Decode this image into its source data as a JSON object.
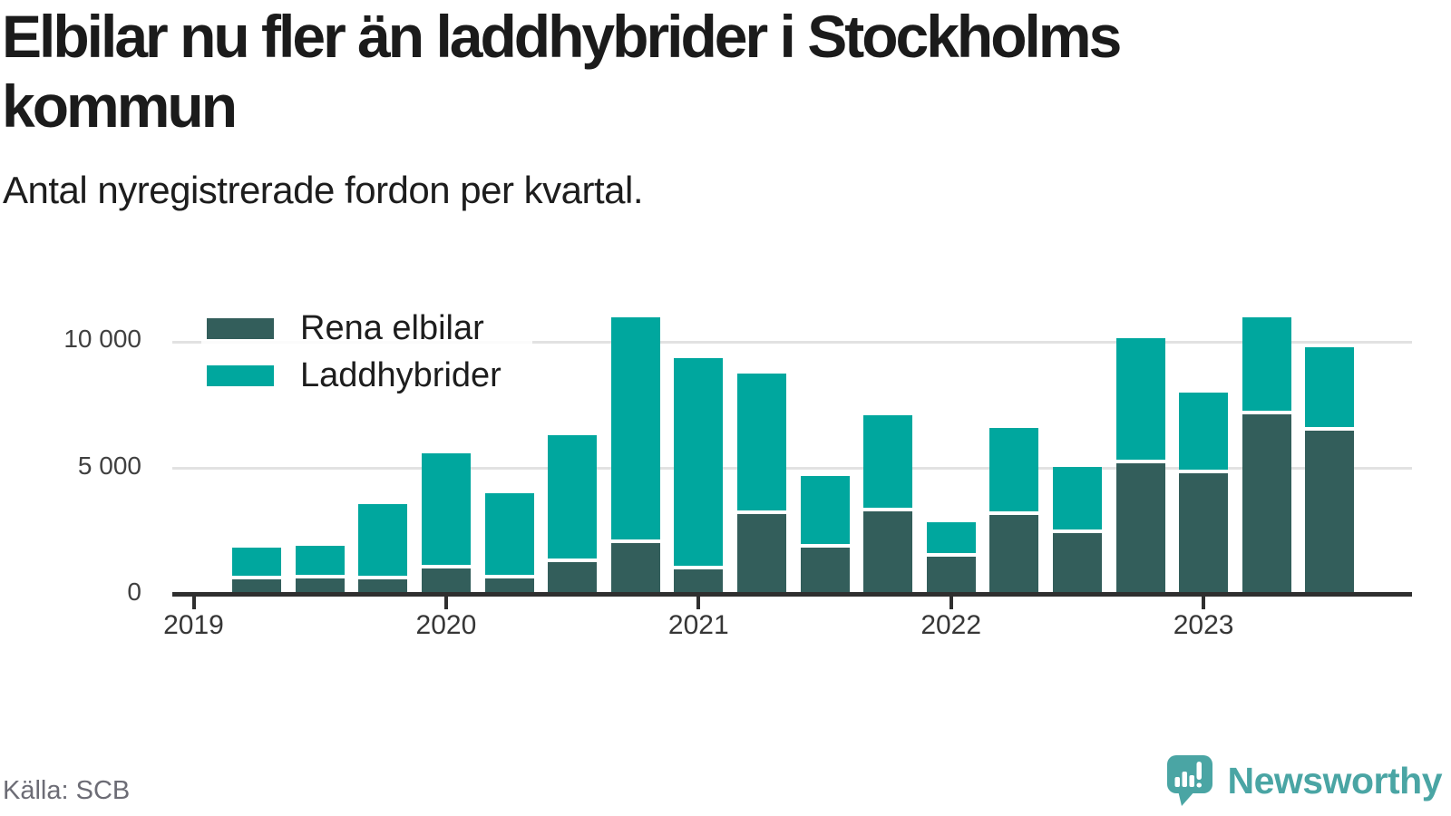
{
  "header": {
    "title": "Elbilar nu fler än laddhybrider i Stockholms kommun",
    "subtitle": "Antal nyregistrerade fordon per kvartal."
  },
  "footer": {
    "source": "Källa: SCB",
    "brand": "Newsworthy"
  },
  "colors": {
    "series_dark": "#335e5b",
    "series_teal": "#00a79e",
    "brand_teal": "#4aa5a4",
    "grid": "#e2e2e2",
    "axis": "#2f2f2f",
    "title_text": "#1b1b1b",
    "tick_text": "#404040",
    "source_text": "#6c6c75"
  },
  "chart_data": {
    "type": "bar",
    "stacked": true,
    "title": "Elbilar nu fler än laddhybrider i Stockholms kommun",
    "subtitle": "Antal nyregistrerade fordon per kvartal.",
    "xlabel": "",
    "ylabel": "",
    "ylim": [
      0,
      11400
    ],
    "grid": "horizontal",
    "legend_position": "top-left-inside",
    "categories": [
      "2019 Q2",
      "2019 Q3",
      "2019 Q4",
      "2020 Q1",
      "2020 Q2",
      "2020 Q3",
      "2020 Q4",
      "2021 Q1",
      "2021 Q2",
      "2021 Q3",
      "2021 Q4",
      "2022 Q1",
      "2022 Q2",
      "2022 Q3",
      "2022 Q4",
      "2023 Q1",
      "2023 Q2",
      "2023 Q3"
    ],
    "series": [
      {
        "name": "Rena elbilar",
        "color_key": "series_dark",
        "values": [
          600,
          650,
          600,
          1050,
          650,
          1300,
          2050,
          1000,
          3200,
          1850,
          3300,
          1500,
          3150,
          2450,
          5200,
          4800,
          7150,
          6500
        ]
      },
      {
        "name": "Laddhybrider",
        "color_key": "series_teal",
        "values": [
          1250,
          1300,
          3000,
          4550,
          3350,
          5000,
          8900,
          8350,
          5550,
          2850,
          3800,
          1350,
          3450,
          2600,
          4950,
          3200,
          3800,
          3300
        ]
      }
    ],
    "y_ticks": [
      {
        "value": 0,
        "label": "0"
      },
      {
        "value": 5000,
        "label": "5 000"
      },
      {
        "value": 10000,
        "label": "10 000"
      }
    ],
    "x_tick_labels": [
      "2019",
      "2020",
      "2021",
      "2022",
      "2023"
    ]
  }
}
